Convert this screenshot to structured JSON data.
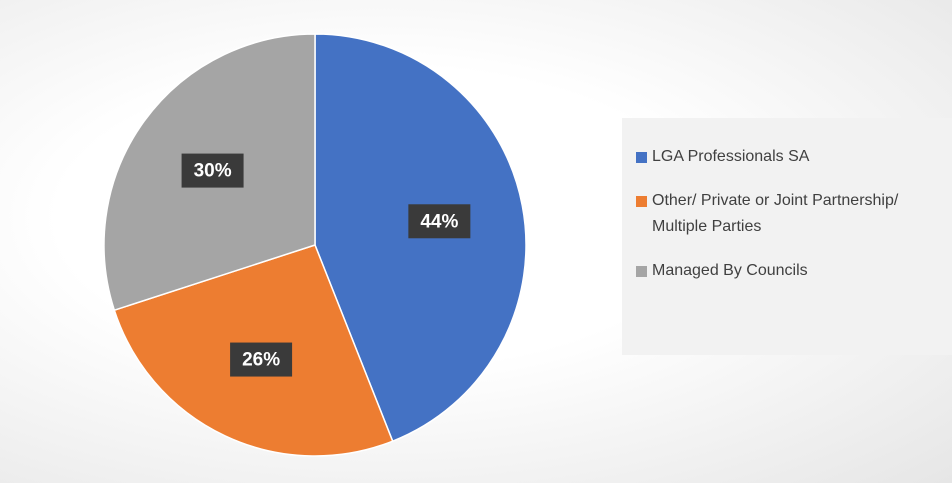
{
  "chart_data": {
    "type": "pie",
    "categories": [
      "LGA Professionals SA",
      "Other/ Private or Joint Partnership/ Multiple Parties",
      "Managed By Councils"
    ],
    "values": [
      44,
      26,
      30
    ],
    "value_labels": [
      "44%",
      "26%",
      "30%"
    ],
    "colors": [
      "#4472c4",
      "#ed7d31",
      "#a5a5a5"
    ],
    "legend": "right"
  }
}
